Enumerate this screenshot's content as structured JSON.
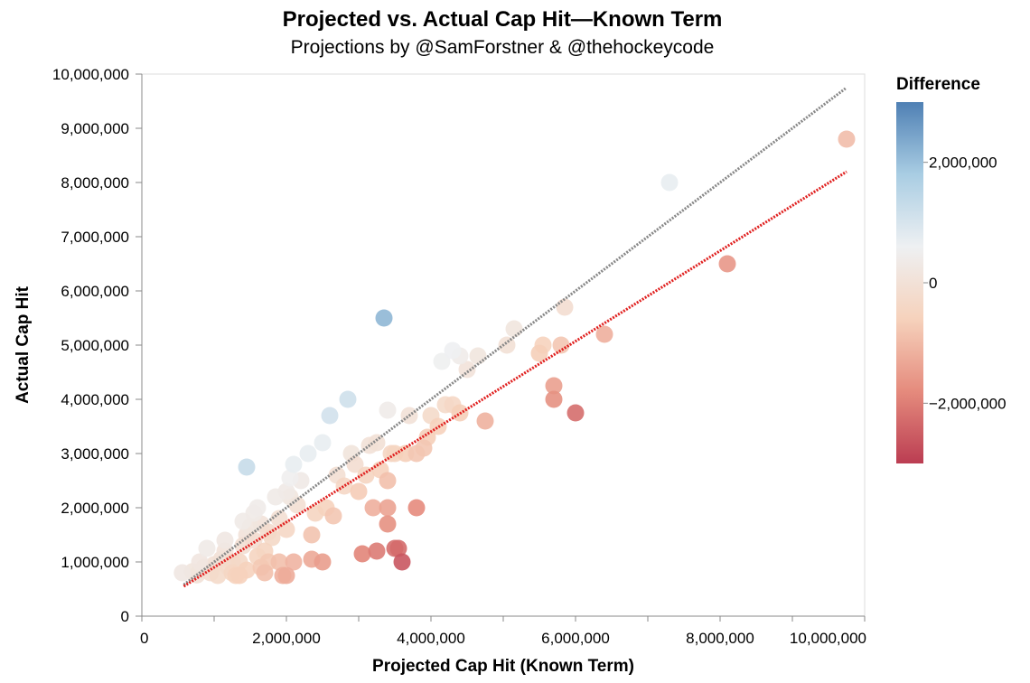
{
  "chart_data": {
    "type": "scatter",
    "title": "Projected vs. Actual Cap Hit—Known Term",
    "subtitle": "Projections by @SamForstner & @thehockeycode",
    "xlabel": "Projected Cap Hit (Known Term)",
    "ylabel": "Actual Cap Hit",
    "xlim": [
      0,
      10000000
    ],
    "ylim": [
      0,
      10000000
    ],
    "x_ticks": [
      0,
      2000000,
      4000000,
      6000000,
      8000000,
      10000000
    ],
    "x_tick_labels": [
      "0",
      "2,000,000",
      "4,000,000",
      "6,000,000",
      "8,000,000",
      "10,000,000"
    ],
    "y_ticks": [
      0,
      1000000,
      2000000,
      3000000,
      4000000,
      5000000,
      6000000,
      7000000,
      8000000,
      9000000,
      10000000
    ],
    "y_tick_labels": [
      "0",
      "1,000,000",
      "2,000,000",
      "3,000,000",
      "4,000,000",
      "5,000,000",
      "6,000,000",
      "7,000,000",
      "8,000,000",
      "9,000,000",
      "10,000,000"
    ],
    "grid": false,
    "color_legend": {
      "title": "Difference",
      "domain": [
        -3000000,
        3000000
      ],
      "ticks": [
        2000000,
        0,
        -2000000
      ],
      "tick_labels": [
        "2,000,000",
        "0",
        "−2,000,000"
      ],
      "stops": [
        "#4f80b4",
        "#a9cde3",
        "#eef0f2",
        "#f6d2bc",
        "#e58b7d",
        "#bb3d52"
      ],
      "placement": "right"
    },
    "reference_lines": [
      {
        "name": "identity",
        "color": "#888888",
        "x": [
          580000,
          9750000
        ],
        "y": [
          580000,
          9750000
        ]
      },
      {
        "name": "trend",
        "color": "#e0201f",
        "x": [
          580000,
          9750000
        ],
        "y": [
          550000,
          8200000
        ]
      }
    ],
    "points": [
      [
        560000,
        800000
      ],
      [
        700000,
        820000
      ],
      [
        760000,
        760000
      ],
      [
        800000,
        1000000
      ],
      [
        860000,
        900000
      ],
      [
        900000,
        1250000
      ],
      [
        950000,
        800000
      ],
      [
        1000000,
        950000
      ],
      [
        1050000,
        750000
      ],
      [
        1100000,
        1050000
      ],
      [
        1150000,
        1200000
      ],
      [
        1150000,
        1400000
      ],
      [
        1200000,
        900000
      ],
      [
        1250000,
        800000
      ],
      [
        1300000,
        750000
      ],
      [
        1350000,
        1000000
      ],
      [
        1400000,
        1300000
      ],
      [
        1400000,
        1750000
      ],
      [
        1450000,
        850000
      ],
      [
        1450000,
        2750000
      ],
      [
        1500000,
        1650000
      ],
      [
        1550000,
        1900000
      ],
      [
        1600000,
        2000000
      ],
      [
        1600000,
        1100000
      ],
      [
        1650000,
        900000
      ],
      [
        1700000,
        1200000
      ],
      [
        1700000,
        800000
      ],
      [
        1750000,
        1000000
      ],
      [
        1800000,
        1450000
      ],
      [
        1850000,
        2200000
      ],
      [
        1900000,
        1000000
      ],
      [
        1950000,
        750000
      ],
      [
        2000000,
        1600000
      ],
      [
        2000000,
        2300000
      ],
      [
        2050000,
        2550000
      ],
      [
        2100000,
        2800000
      ],
      [
        2200000,
        2500000
      ],
      [
        2300000,
        3000000
      ],
      [
        2350000,
        1500000
      ],
      [
        2400000,
        1900000
      ],
      [
        2500000,
        3200000
      ],
      [
        2550000,
        2000000
      ],
      [
        2600000,
        3700000
      ],
      [
        2650000,
        1850000
      ],
      [
        2700000,
        2600000
      ],
      [
        2800000,
        2400000
      ],
      [
        2850000,
        4000000
      ],
      [
        2900000,
        3000000
      ],
      [
        2950000,
        2800000
      ],
      [
        3000000,
        2300000
      ],
      [
        3100000,
        2600000
      ],
      [
        3150000,
        3150000
      ],
      [
        3200000,
        2000000
      ],
      [
        3250000,
        3200000
      ],
      [
        3300000,
        2700000
      ],
      [
        3350000,
        5500000
      ],
      [
        3400000,
        3800000
      ],
      [
        3400000,
        2500000
      ],
      [
        3450000,
        3000000
      ],
      [
        3500000,
        3000000
      ],
      [
        3650000,
        3000000
      ],
      [
        3700000,
        3700000
      ],
      [
        3800000,
        3000000
      ],
      [
        3900000,
        3100000
      ],
      [
        3950000,
        3300000
      ],
      [
        4000000,
        3700000
      ],
      [
        4100000,
        3500000
      ],
      [
        4150000,
        4700000
      ],
      [
        4200000,
        3900000
      ],
      [
        4300000,
        3900000
      ],
      [
        4300000,
        4900000
      ],
      [
        4400000,
        4800000
      ],
      [
        4400000,
        3750000
      ],
      [
        4500000,
        4550000
      ],
      [
        4650000,
        4800000
      ],
      [
        4750000,
        3600000
      ],
      [
        5050000,
        5000000
      ],
      [
        5150000,
        5300000
      ],
      [
        5500000,
        4850000
      ],
      [
        5550000,
        5000000
      ],
      [
        5700000,
        4250000
      ],
      [
        5700000,
        4000000
      ],
      [
        5800000,
        5000000
      ],
      [
        5850000,
        5700000
      ],
      [
        6000000,
        3750000
      ],
      [
        6400000,
        5200000
      ],
      [
        7300000,
        8000000
      ],
      [
        8100000,
        6500000
      ],
      [
        9750000,
        8800000
      ],
      [
        3600000,
        1000000
      ],
      [
        3550000,
        1250000
      ],
      [
        3500000,
        1250000
      ],
      [
        3250000,
        1200000
      ],
      [
        3050000,
        1150000
      ],
      [
        2500000,
        1000000
      ],
      [
        2350000,
        1050000
      ],
      [
        2100000,
        1000000
      ],
      [
        2000000,
        750000
      ],
      [
        3400000,
        1700000
      ],
      [
        3400000,
        2000000
      ],
      [
        3800000,
        2000000
      ],
      [
        1250000,
        1000000
      ],
      [
        1350000,
        750000
      ],
      [
        1450000,
        1500000
      ],
      [
        1550000,
        1400000
      ],
      [
        1650000,
        1700000
      ],
      [
        1750000,
        1550000
      ],
      [
        1900000,
        1800000
      ],
      [
        2050000,
        2200000
      ],
      [
        2150000,
        2050000
      ]
    ]
  }
}
